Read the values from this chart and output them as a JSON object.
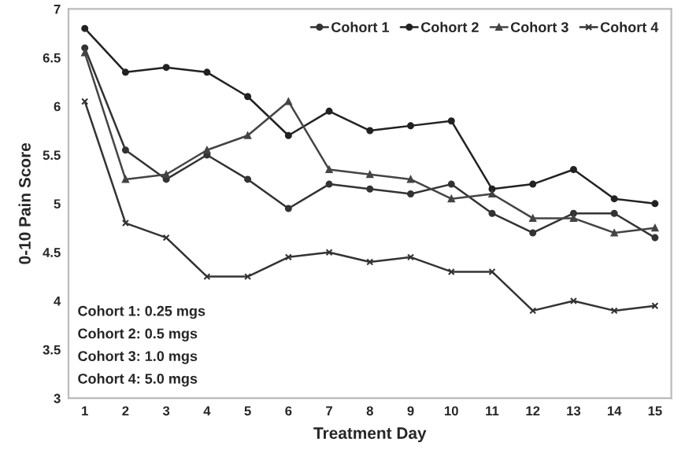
{
  "chart_data": {
    "type": "line",
    "xlabel": "Treatment Day",
    "ylabel": "0-10 Pain Score",
    "x": [
      1,
      2,
      3,
      4,
      5,
      6,
      7,
      8,
      9,
      10,
      11,
      12,
      13,
      14,
      15
    ],
    "series": [
      {
        "name": "Cohort 1",
        "color": "#333333",
        "marker": "circle",
        "values": [
          6.6,
          5.55,
          5.25,
          5.5,
          5.25,
          4.95,
          5.2,
          5.15,
          5.1,
          5.2,
          4.9,
          4.7,
          4.9,
          4.9,
          4.65
        ]
      },
      {
        "name": "Cohort 2",
        "color": "#222222",
        "marker": "circle",
        "values": [
          6.8,
          6.35,
          6.4,
          6.35,
          6.1,
          5.7,
          5.95,
          5.75,
          5.8,
          5.85,
          5.15,
          5.2,
          5.35,
          5.05,
          5.0
        ]
      },
      {
        "name": "Cohort 3",
        "color": "#444444",
        "marker": "triangle",
        "values": [
          6.55,
          5.25,
          5.3,
          5.55,
          5.7,
          6.05,
          5.35,
          5.3,
          5.25,
          5.05,
          5.1,
          4.85,
          4.85,
          4.7,
          4.75
        ]
      },
      {
        "name": "Cohort 4",
        "color": "#333333",
        "marker": "cross",
        "values": [
          6.05,
          4.8,
          4.65,
          4.25,
          4.25,
          4.45,
          4.5,
          4.4,
          4.45,
          4.3,
          4.3,
          3.9,
          4.0,
          3.9,
          3.95
        ]
      }
    ],
    "xlim": [
      0.6,
      15.4
    ],
    "xticks": [
      1,
      2,
      3,
      4,
      5,
      6,
      7,
      8,
      9,
      10,
      11,
      12,
      13,
      14,
      15
    ],
    "ylim": [
      3,
      7
    ],
    "yticks": [
      3,
      3.5,
      4,
      4.5,
      5,
      5.5,
      6,
      6.5,
      7
    ],
    "annotations": [
      "Cohort 1: 0.25 mgs",
      "Cohort 2: 0.5 mgs",
      "Cohort 3: 1.0 mgs",
      "Cohort 4: 5.0 mgs"
    ],
    "legend": "top right",
    "grid": false
  }
}
